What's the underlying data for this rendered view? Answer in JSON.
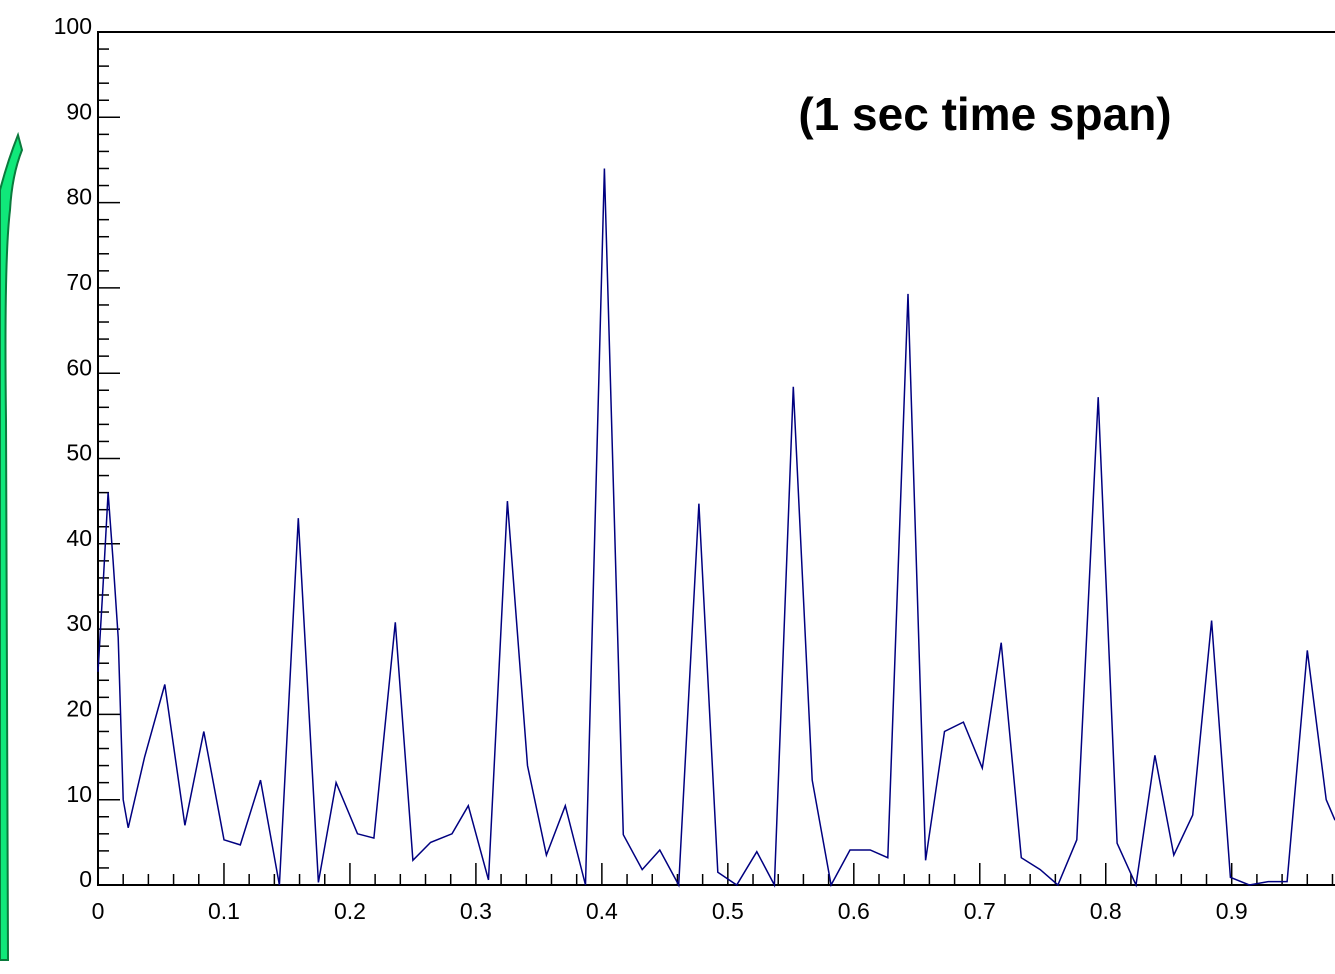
{
  "chart_data": {
    "type": "line",
    "title": "(1 sec time span)",
    "x": [
      0,
      0.004,
      0.008,
      0.012,
      0.016,
      0.02,
      0.024,
      0.037,
      0.053,
      0.069,
      0.084,
      0.1,
      0.113,
      0.129,
      0.144,
      0.159,
      0.175,
      0.189,
      0.206,
      0.219,
      0.236,
      0.25,
      0.264,
      0.281,
      0.294,
      0.31,
      0.325,
      0.341,
      0.356,
      0.371,
      0.387,
      0.402,
      0.417,
      0.432,
      0.446,
      0.461,
      0.477,
      0.492,
      0.507,
      0.523,
      0.537,
      0.552,
      0.567,
      0.582,
      0.597,
      0.613,
      0.627,
      0.643,
      0.657,
      0.672,
      0.687,
      0.702,
      0.717,
      0.733,
      0.748,
      0.762,
      0.777,
      0.794,
      0.809,
      0.824,
      0.839,
      0.854,
      0.869,
      0.884,
      0.899,
      0.914,
      0.929,
      0.944,
      0.96,
      0.975,
      0.982
    ],
    "values": [
      25,
      35,
      46,
      38,
      29,
      10,
      6.7,
      15,
      23.5,
      7,
      18,
      5.3,
      4.7,
      12.3,
      0,
      43,
      0.3,
      12,
      6,
      5.5,
      30.8,
      2.9,
      5,
      6,
      9.3,
      0.6,
      45,
      14,
      3.5,
      9.3,
      0,
      84,
      5.9,
      1.8,
      4.1,
      0,
      44.7,
      1.5,
      0,
      3.9,
      0,
      58.4,
      12.3,
      0,
      4.1,
      4.1,
      3.2,
      69.3,
      2.9,
      18,
      19.1,
      13.7,
      28.4,
      3.2,
      1.8,
      0,
      5.3,
      57.2,
      4.9,
      0,
      15.2,
      3.5,
      8.2,
      31,
      0.9,
      0,
      0.4,
      0.4,
      27.5,
      10,
      7.6
    ],
    "color": "#000080",
    "xlim": [
      0,
      0.982
    ],
    "xticks": [
      0,
      0.1,
      0.2,
      0.3,
      0.4,
      0.5,
      0.6,
      0.7,
      0.8,
      0.9
    ],
    "ylim": [
      0,
      100
    ],
    "yticks": [
      0,
      10,
      20,
      30,
      40,
      50,
      60,
      70,
      80,
      90,
      100
    ]
  }
}
